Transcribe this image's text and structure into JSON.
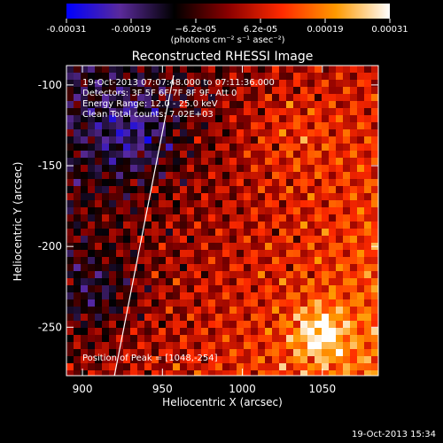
{
  "footer": {
    "timestamp": "19-Oct-2013 15:34"
  },
  "colorbar": {
    "tick_labels": [
      "-0.00031",
      "-0.00019",
      "−6.2e-05",
      "6.2e-05",
      "0.00019",
      "0.00031"
    ],
    "unit_label": "(photons cm⁻² s⁻¹ asec⁻²)",
    "range": [
      -0.00031,
      0.00031
    ],
    "stops": [
      "#0000ff",
      "#5a2a9a",
      "#000000",
      "#8a0000",
      "#ff2a00",
      "#ff9900",
      "#ffffff"
    ]
  },
  "chart_data": {
    "type": "heatmap",
    "title": "Reconstructed RHESSI Image",
    "xlabel": "Heliocentric X (arcsec)",
    "ylabel": "Heliocentric Y (arcsec)",
    "xlim": [
      890,
      1085
    ],
    "ylim": [
      -280,
      -88
    ],
    "xticks": [
      900,
      950,
      1000,
      1050
    ],
    "yticks": [
      -100,
      -150,
      -200,
      -250
    ],
    "annotations": [
      "19-Oct-2013 07:07:48.000 to 07:11:36.000",
      "Detectors: 3F 5F 6F 7F 8F 9F, Att 0",
      "Energy Range: 12.0 - 25.0 keV",
      "Clean     Total counts: 7.02E+03"
    ],
    "peak_label": "Position of Peak = [1048,-254]",
    "peak": {
      "x": 1048,
      "y": -254
    },
    "limb_line": [
      {
        "x": 920,
        "y": -280
      },
      {
        "x": 957,
        "y": -94
      }
    ],
    "minimum_marker": {
      "x": 947,
      "y": -137
    }
  }
}
